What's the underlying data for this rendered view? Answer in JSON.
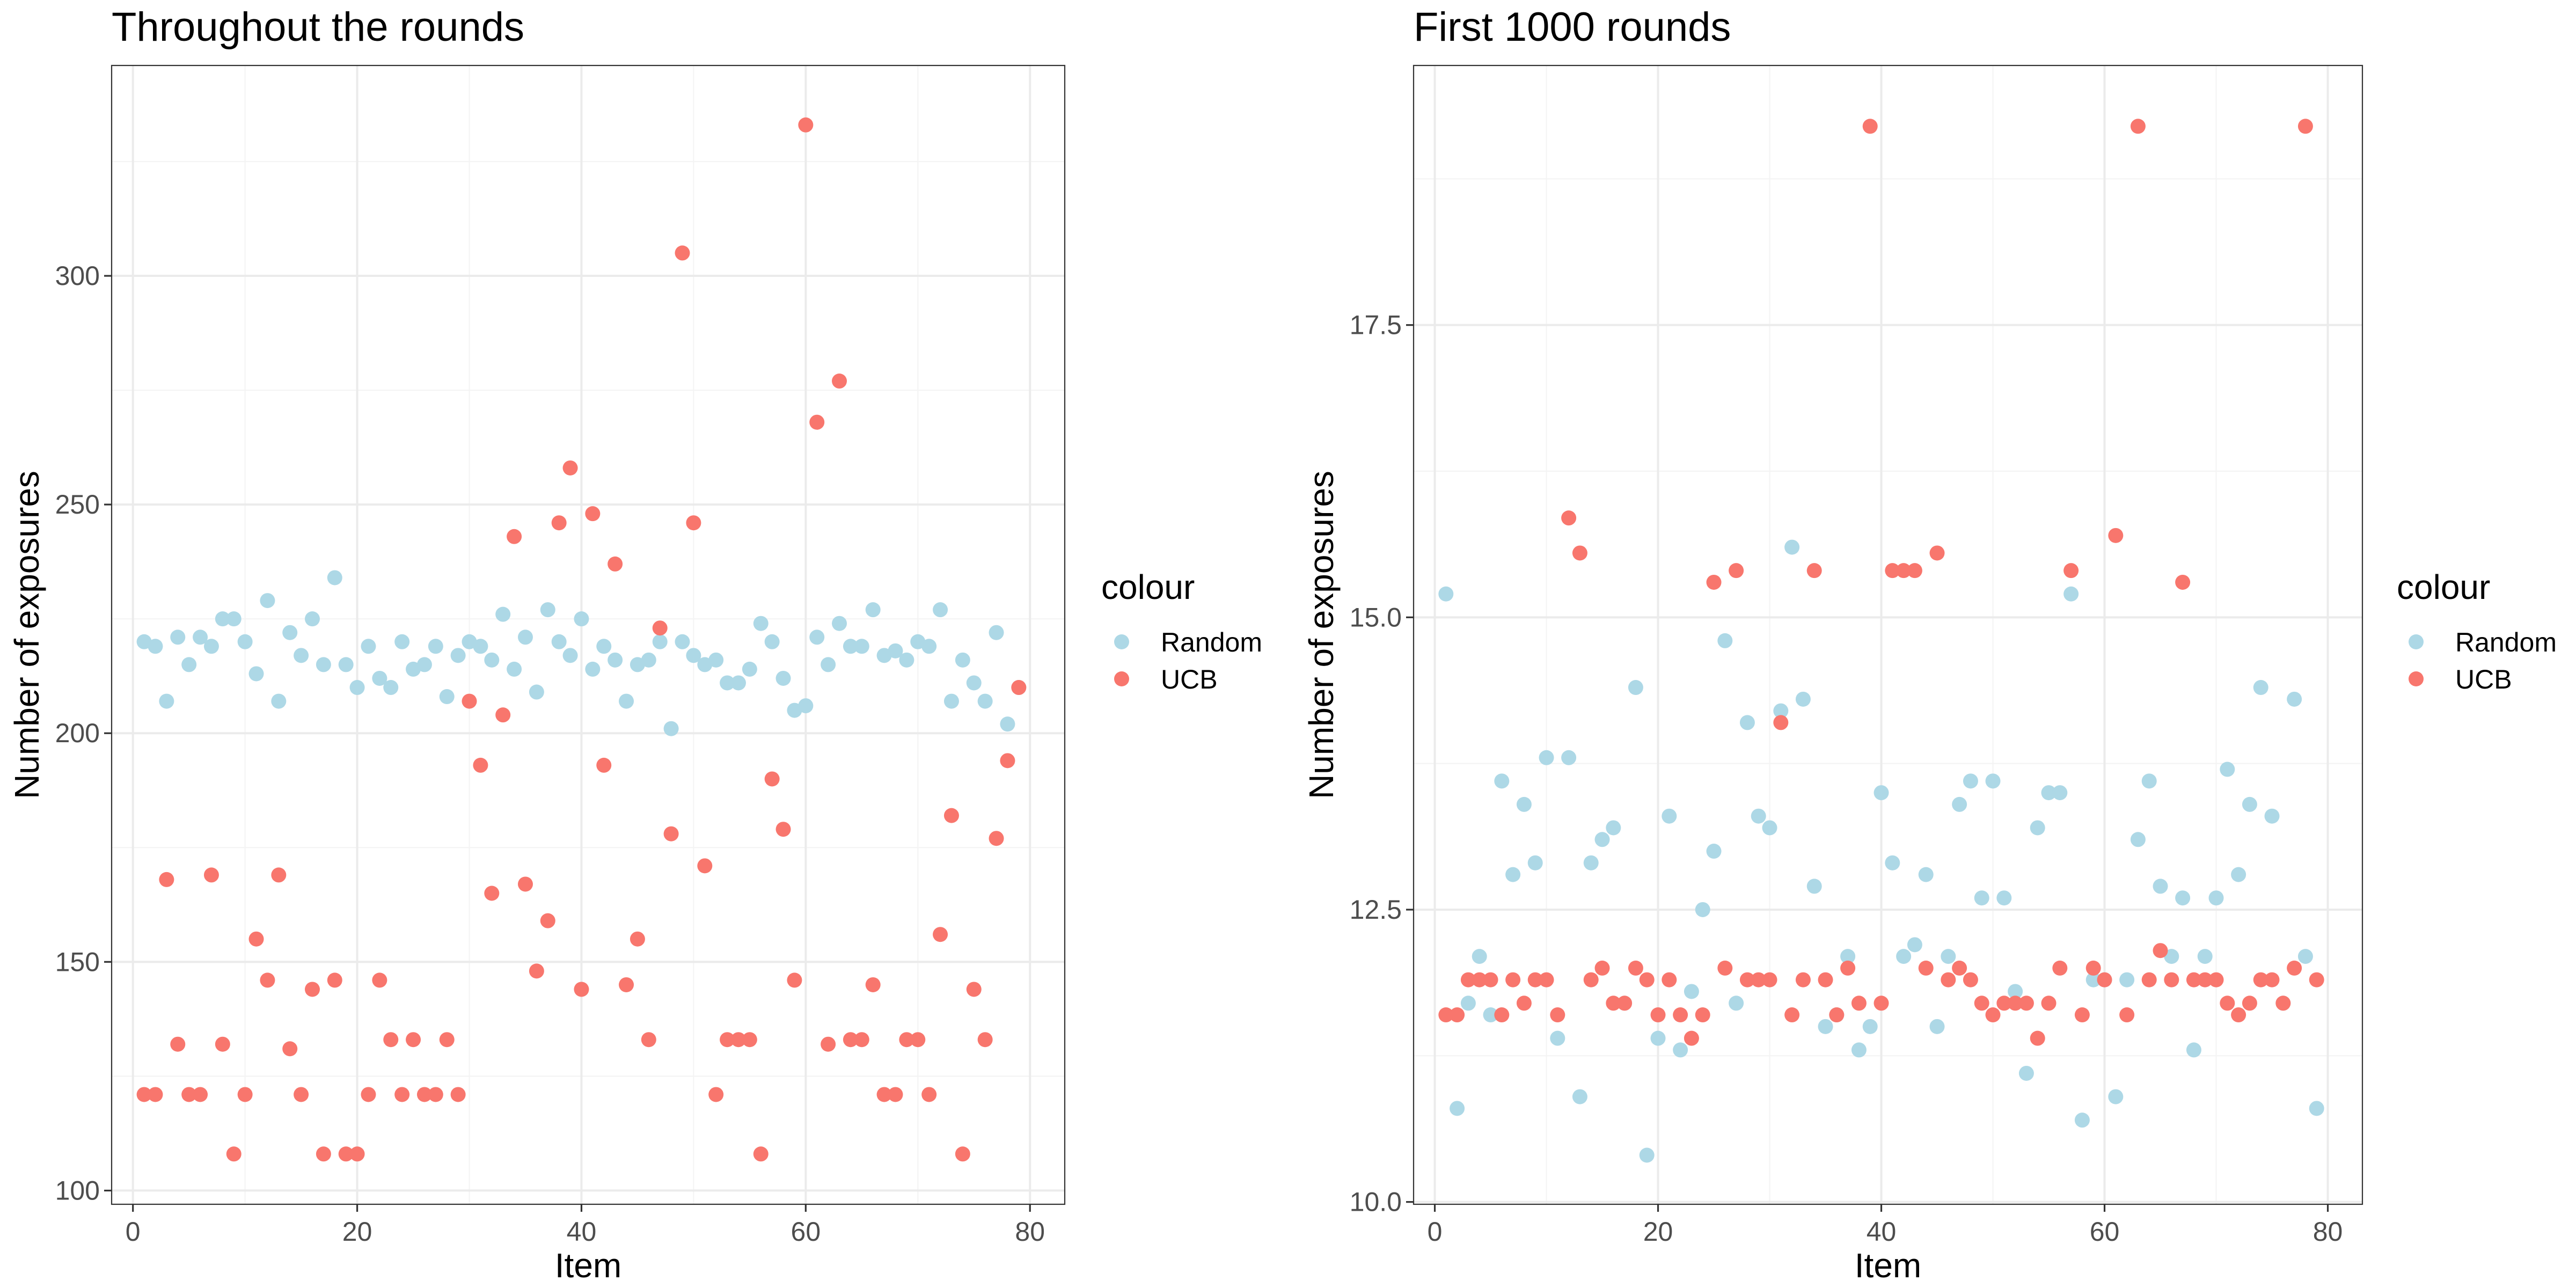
{
  "colors": {
    "Random": "#add8e6",
    "UCB": "#f8766d"
  },
  "chart_data": [
    {
      "type": "scatter",
      "title": "Throughout the rounds",
      "xlabel": "Item",
      "ylabel": "Number of exposures",
      "xlim": [
        -1.9,
        83.1
      ],
      "ylim": [
        97,
        346
      ],
      "xticks": [
        0,
        20,
        40,
        60,
        80
      ],
      "yticks": [
        100,
        150,
        200,
        250,
        300
      ],
      "xtick_labels": [
        "0",
        "20",
        "40",
        "60",
        "80"
      ],
      "ytick_labels": [
        "100",
        "150",
        "200",
        "250",
        "300"
      ],
      "grid": true,
      "legend": {
        "title": "colour",
        "position": "right",
        "entries": [
          "Random",
          "UCB"
        ]
      },
      "series": [
        {
          "name": "Random",
          "x": [
            1,
            2,
            3,
            4,
            5,
            6,
            7,
            8,
            9,
            10,
            11,
            12,
            13,
            14,
            15,
            16,
            17,
            18,
            19,
            20,
            21,
            22,
            23,
            24,
            25,
            26,
            27,
            28,
            29,
            30,
            31,
            32,
            33,
            34,
            35,
            36,
            37,
            38,
            39,
            40,
            41,
            42,
            43,
            44,
            45,
            46,
            47,
            48,
            49,
            50,
            51,
            52,
            53,
            54,
            55,
            56,
            57,
            58,
            59,
            60,
            61,
            62,
            63,
            64,
            65,
            66,
            67,
            68,
            69,
            70,
            71,
            72,
            73,
            74,
            75,
            76,
            77,
            78,
            79
          ],
          "y": [
            220,
            219,
            207,
            221,
            215,
            221,
            219,
            225,
            225,
            220,
            213,
            229,
            207,
            222,
            217,
            225,
            215,
            234,
            215,
            210,
            219,
            212,
            210,
            220,
            214,
            215,
            219,
            208,
            217,
            220,
            219,
            216,
            226,
            214,
            221,
            209,
            227,
            220,
            217,
            225,
            214,
            219,
            216,
            207,
            215,
            216,
            220,
            201,
            220,
            217,
            215,
            216,
            211,
            211,
            214,
            224,
            220,
            212,
            205,
            206,
            221,
            215,
            224,
            219,
            219,
            227,
            217,
            218,
            216,
            220,
            219,
            227,
            207,
            216,
            211,
            207,
            222,
            202,
            210
          ]
        },
        {
          "name": "UCB",
          "x": [
            1,
            2,
            3,
            4,
            5,
            6,
            7,
            8,
            9,
            10,
            11,
            12,
            13,
            14,
            15,
            16,
            17,
            18,
            19,
            20,
            21,
            22,
            23,
            24,
            25,
            26,
            27,
            28,
            29,
            30,
            31,
            32,
            33,
            34,
            35,
            36,
            37,
            38,
            39,
            40,
            41,
            42,
            43,
            44,
            45,
            46,
            47,
            48,
            49,
            50,
            51,
            52,
            53,
            54,
            55,
            56,
            57,
            58,
            59,
            60,
            61,
            62,
            63,
            64,
            65,
            66,
            67,
            68,
            69,
            70,
            71,
            72,
            73,
            74,
            75,
            76,
            77,
            78,
            79
          ],
          "y": [
            121,
            121,
            168,
            132,
            121,
            121,
            169,
            132,
            108,
            121,
            155,
            146,
            169,
            131,
            121,
            144,
            108,
            146,
            108,
            108,
            121,
            146,
            133,
            121,
            133,
            121,
            121,
            133,
            121,
            207,
            193,
            165,
            204,
            243,
            167,
            148,
            159,
            246,
            258,
            144,
            248,
            193,
            237,
            145,
            155,
            133,
            223,
            178,
            305,
            246,
            171,
            121,
            133,
            133,
            133,
            108,
            190,
            179,
            146,
            333,
            268,
            132,
            277,
            133,
            133,
            145,
            121,
            121,
            133,
            133,
            121,
            156,
            182,
            108,
            144,
            133,
            177,
            194,
            210
          ]
        }
      ]
    },
    {
      "type": "scatter",
      "title": "First 1000 rounds",
      "xlabel": "Item",
      "ylabel": "Number of exposures",
      "xlim": [
        -1.9,
        83.1
      ],
      "ylim": [
        9.98,
        19.72
      ],
      "xticks": [
        0,
        20,
        40,
        60,
        80
      ],
      "yticks": [
        10.0,
        12.5,
        15.0,
        17.5
      ],
      "xtick_labels": [
        "0",
        "20",
        "40",
        "60",
        "80"
      ],
      "ytick_labels": [
        "10.0",
        "12.5",
        "15.0",
        "17.5"
      ],
      "grid": true,
      "legend": {
        "title": "colour",
        "position": "right",
        "entries": [
          "Random",
          "UCB"
        ]
      },
      "series": [
        {
          "name": "Random",
          "x": [
            1,
            2,
            3,
            4,
            5,
            6,
            7,
            8,
            9,
            10,
            11,
            12,
            13,
            14,
            15,
            16,
            17,
            18,
            19,
            20,
            21,
            22,
            23,
            24,
            25,
            26,
            27,
            28,
            29,
            30,
            31,
            32,
            33,
            34,
            35,
            36,
            37,
            38,
            39,
            40,
            41,
            42,
            43,
            44,
            45,
            46,
            47,
            48,
            49,
            50,
            51,
            52,
            53,
            54,
            55,
            56,
            57,
            58,
            59,
            60,
            61,
            62,
            63,
            64,
            65,
            66,
            67,
            68,
            69,
            70,
            71,
            72,
            73,
            74,
            75,
            76,
            77,
            78,
            79
          ],
          "y": [
            15.2,
            10.8,
            11.7,
            12.1,
            11.6,
            13.6,
            12.8,
            13.4,
            12.9,
            13.8,
            11.4,
            13.8,
            10.9,
            12.9,
            13.1,
            13.2,
            11.7,
            14.4,
            10.4,
            11.4,
            13.3,
            11.3,
            11.8,
            12.5,
            13.0,
            14.8,
            11.7,
            14.1,
            13.3,
            13.2,
            14.2,
            15.6,
            14.3,
            12.7,
            11.5,
            11.6,
            12.1,
            11.3,
            11.5,
            13.5,
            12.9,
            12.1,
            12.2,
            12.8,
            11.5,
            12.1,
            13.4,
            13.6,
            12.6,
            13.6,
            12.6,
            11.8,
            11.1,
            13.2,
            13.5,
            13.5,
            15.2,
            10.7,
            11.9,
            11.9,
            10.9,
            11.9,
            13.1,
            13.6,
            12.7,
            12.1,
            12.6,
            11.3,
            12.1,
            12.6,
            13.7,
            12.8,
            13.4,
            14.4,
            13.3,
            11.7,
            14.3,
            12.1,
            10.8
          ]
        },
        {
          "name": "UCB",
          "x": [
            1,
            2,
            3,
            4,
            5,
            6,
            7,
            8,
            9,
            10,
            11,
            12,
            13,
            14,
            15,
            16,
            17,
            18,
            19,
            20,
            21,
            22,
            23,
            24,
            25,
            26,
            27,
            28,
            29,
            30,
            31,
            32,
            33,
            34,
            35,
            36,
            37,
            38,
            39,
            40,
            41,
            42,
            43,
            44,
            45,
            46,
            47,
            48,
            49,
            50,
            51,
            52,
            53,
            54,
            55,
            56,
            57,
            58,
            59,
            60,
            61,
            62,
            63,
            64,
            65,
            66,
            67,
            68,
            69,
            70,
            71,
            72,
            73,
            74,
            75,
            76,
            77,
            78,
            79
          ],
          "y": [
            11.6,
            11.6,
            11.9,
            11.9,
            11.9,
            11.6,
            11.9,
            11.7,
            11.9,
            11.9,
            11.6,
            15.85,
            15.55,
            11.9,
            12.0,
            11.7,
            11.7,
            12.0,
            11.9,
            11.6,
            11.9,
            11.6,
            11.4,
            11.6,
            15.3,
            12.0,
            15.4,
            11.9,
            11.9,
            11.9,
            14.1,
            11.6,
            11.9,
            15.4,
            11.9,
            11.6,
            12.0,
            11.7,
            19.2,
            11.7,
            15.4,
            15.4,
            15.4,
            12.0,
            15.55,
            11.9,
            12.0,
            11.9,
            11.7,
            11.6,
            11.7,
            11.7,
            11.7,
            11.4,
            11.7,
            12.0,
            15.4,
            11.6,
            12.0,
            11.9,
            15.7,
            11.6,
            19.2,
            11.9,
            12.15,
            11.9,
            15.3,
            11.9,
            11.9,
            11.9,
            11.7,
            11.6,
            11.7,
            11.9,
            11.9,
            11.7,
            12.0,
            19.2,
            11.9
          ]
        }
      ]
    }
  ]
}
